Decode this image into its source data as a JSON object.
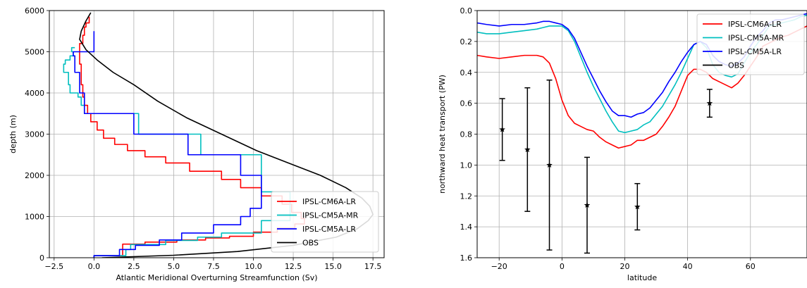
{
  "chart_data": [
    {
      "type": "line",
      "xlabel": "Atlantic Meridional Overturning Streamfunction (Sv)",
      "ylabel": "depth (m)",
      "xlim": [
        -2.8,
        18.2
      ],
      "ylim": [
        6000,
        0
      ],
      "y_inverted": true,
      "grid": true,
      "legend_position": "lower-right",
      "xticks": [
        -2.5,
        0.0,
        2.5,
        5.0,
        7.5,
        10.0,
        12.5,
        15.0,
        17.5
      ],
      "xtick_labels": [
        "−2.5",
        "0.0",
        "2.5",
        "5.0",
        "7.5",
        "10.0",
        "12.5",
        "15.0",
        "17.5"
      ],
      "yticks": [
        0,
        1000,
        2000,
        3000,
        4000,
        5000,
        6000
      ],
      "ytick_labels": [
        "0",
        "1000",
        "2000",
        "3000",
        "4000",
        "5000",
        "6000"
      ],
      "series": [
        {
          "name": "IPSL-CM6A-LR",
          "color": "#ff0000",
          "step": true,
          "x": [
            0,
            1.8,
            1.8,
            1.8,
            3.2,
            5.2,
            7.0,
            8.5,
            10.0,
            11.5,
            12.6,
            13.2,
            13.0,
            12.4,
            11.8,
            10.5,
            9.2,
            8.0,
            6.0,
            4.5,
            3.2,
            2.1,
            1.3,
            0.6,
            0.2,
            -0.2,
            -0.4,
            -0.6,
            -0.7,
            -0.8,
            -0.9,
            -0.7,
            -0.6,
            -0.5,
            -0.3
          ],
          "y": [
            0,
            50,
            150,
            250,
            330,
            380,
            430,
            480,
            520,
            620,
            720,
            820,
            950,
            1100,
            1300,
            1500,
            1700,
            1900,
            2100,
            2300,
            2450,
            2600,
            2750,
            2900,
            3100,
            3300,
            3500,
            3700,
            3900,
            4200,
            4700,
            5200,
            5400,
            5600,
            5700
          ],
          "bottom": 5850
        },
        {
          "name": "IPSL-CM5A-MR",
          "color": "#00bfbf",
          "step": true,
          "x": [
            0,
            2.0,
            2.3,
            4.5,
            6.5,
            8.0,
            10.5,
            11.2,
            12.3,
            12.3,
            10.5,
            10.5,
            6.7,
            2.8,
            0.0,
            -0.6,
            -0.8,
            -1.0,
            -1.5,
            -1.6,
            -1.9,
            -1.8,
            -1.5,
            -1.3,
            -1.4,
            -1.2
          ],
          "y": [
            0,
            50,
            200,
            320,
            420,
            500,
            600,
            900,
            900,
            1200,
            1600,
            2000,
            2500,
            3000,
            3500,
            3500,
            3700,
            3900,
            4000,
            4200,
            4500,
            4700,
            4800,
            4900,
            5000,
            5100
          ],
          "bottom": 5100
        },
        {
          "name": "IPSL-CM5A-LR",
          "color": "#0000ff",
          "step": true,
          "x": [
            0,
            1.6,
            2.6,
            4.1,
            5.5,
            7.5,
            9.2,
            9.8,
            10.5,
            10.5,
            9.8,
            9.2,
            5.9,
            2.5,
            0.0,
            -0.6,
            -0.9,
            -1.2,
            -1.3,
            -1.1,
            0.0
          ],
          "y": [
            0,
            50,
            200,
            300,
            430,
            600,
            800,
            1000,
            1200,
            1600,
            2000,
            2000,
            2500,
            3000,
            3500,
            3500,
            4000,
            4500,
            4900,
            5000,
            5000
          ],
          "bottom": 5500
        },
        {
          "name": "OBS",
          "color": "#000000",
          "step": false,
          "x": [
            0.5,
            5.0,
            9.0,
            12.5,
            15.2,
            16.5,
            17.2,
            17.5,
            17.3,
            16.8,
            15.8,
            14.2,
            12.2,
            10.2,
            8.0,
            5.8,
            4.0,
            2.5,
            1.2,
            0.2,
            -0.5,
            -0.9,
            -0.8,
            -0.5,
            -0.2
          ],
          "y": [
            0,
            60,
            150,
            300,
            500,
            700,
            900,
            1050,
            1250,
            1450,
            1700,
            2000,
            2300,
            2600,
            3000,
            3400,
            3800,
            4200,
            4500,
            4800,
            5050,
            5300,
            5500,
            5750,
            5950
          ]
        }
      ]
    },
    {
      "type": "line",
      "xlabel": "latitude",
      "ylabel": "northward heat transport (PW)",
      "xlim": [
        -27,
        78
      ],
      "ylim": [
        0.0,
        1.6
      ],
      "grid": true,
      "legend_position": "upper-right",
      "xticks": [
        -20,
        0,
        20,
        40,
        60
      ],
      "xtick_labels": [
        "−20",
        "0",
        "20",
        "40",
        "60"
      ],
      "yticks": [
        0.0,
        0.2,
        0.4,
        0.6,
        0.8,
        1.0,
        1.2,
        1.4,
        1.6
      ],
      "ytick_labels": [
        "0.0",
        "0.2",
        "0.4",
        "0.6",
        "0.8",
        "1.0",
        "1.2",
        "1.4",
        "1.6"
      ],
      "series": [
        {
          "name": "IPSL-CM6A-LR",
          "color": "#ff0000",
          "x": [
            -27,
            -24,
            -20,
            -16,
            -12,
            -8,
            -6,
            -4,
            -2,
            0,
            2,
            4,
            6,
            8,
            10,
            12,
            14,
            16,
            18,
            20,
            22,
            24,
            26,
            28,
            30,
            32,
            34,
            36,
            38,
            40,
            42,
            44,
            46,
            48,
            50,
            52,
            54,
            56,
            58,
            60,
            62,
            64,
            66,
            68,
            70,
            72,
            74,
            76,
            78
          ],
          "y": [
            0.29,
            0.3,
            0.31,
            0.3,
            0.29,
            0.29,
            0.3,
            0.34,
            0.44,
            0.58,
            0.68,
            0.73,
            0.75,
            0.77,
            0.78,
            0.82,
            0.85,
            0.87,
            0.89,
            0.88,
            0.87,
            0.84,
            0.84,
            0.82,
            0.8,
            0.75,
            0.69,
            0.62,
            0.52,
            0.42,
            0.38,
            0.38,
            0.4,
            0.44,
            0.46,
            0.48,
            0.5,
            0.47,
            0.42,
            0.36,
            0.3,
            0.23,
            0.21,
            0.19,
            0.17,
            0.16,
            0.14,
            0.12,
            0.1
          ]
        },
        {
          "name": "IPSL-CM5A-MR",
          "color": "#00bfbf",
          "x": [
            -27,
            -24,
            -20,
            -16,
            -12,
            -8,
            -6,
            -4,
            -2,
            0,
            2,
            4,
            6,
            8,
            10,
            12,
            14,
            16,
            18,
            20,
            22,
            24,
            26,
            28,
            30,
            32,
            34,
            36,
            38,
            40,
            42,
            44,
            46,
            48,
            50,
            52,
            54,
            56,
            58,
            60,
            62,
            64,
            66,
            68,
            70,
            72,
            74,
            76,
            78
          ],
          "y": [
            0.14,
            0.15,
            0.15,
            0.14,
            0.13,
            0.12,
            0.11,
            0.1,
            0.1,
            0.1,
            0.13,
            0.2,
            0.3,
            0.4,
            0.49,
            0.57,
            0.65,
            0.72,
            0.78,
            0.79,
            0.78,
            0.77,
            0.74,
            0.72,
            0.67,
            0.62,
            0.55,
            0.48,
            0.4,
            0.31,
            0.22,
            0.2,
            0.24,
            0.35,
            0.4,
            0.42,
            0.43,
            0.41,
            0.34,
            0.27,
            0.22,
            0.16,
            0.1,
            0.09,
            0.08,
            0.07,
            0.06,
            0.04,
            0.03
          ]
        },
        {
          "name": "IPSL-CM5A-LR",
          "color": "#0000ff",
          "x": [
            -27,
            -24,
            -20,
            -16,
            -12,
            -8,
            -6,
            -4,
            -2,
            0,
            2,
            4,
            6,
            8,
            10,
            12,
            14,
            16,
            18,
            20,
            22,
            24,
            26,
            28,
            30,
            32,
            34,
            36,
            38,
            40,
            42,
            44,
            46,
            48,
            50,
            52,
            54,
            56,
            58,
            60,
            62,
            64,
            66,
            68,
            70,
            72,
            74,
            76,
            78
          ],
          "y": [
            0.08,
            0.09,
            0.1,
            0.09,
            0.09,
            0.08,
            0.07,
            0.07,
            0.08,
            0.09,
            0.12,
            0.18,
            0.27,
            0.36,
            0.44,
            0.52,
            0.59,
            0.65,
            0.68,
            0.68,
            0.69,
            0.67,
            0.66,
            0.63,
            0.58,
            0.53,
            0.46,
            0.4,
            0.33,
            0.27,
            0.22,
            0.2,
            0.22,
            0.29,
            0.33,
            0.35,
            0.36,
            0.34,
            0.3,
            0.23,
            0.17,
            0.13,
            0.08,
            0.06,
            0.06,
            0.05,
            0.04,
            0.03,
            0.02
          ]
        },
        {
          "name": "OBS",
          "color": "#000000",
          "type": "errorbar",
          "x": [
            -19,
            -11,
            -4,
            8,
            24,
            47
          ],
          "y": [
            0.77,
            0.9,
            1.0,
            1.26,
            1.27,
            0.6
          ],
          "yerr_low": [
            0.57,
            0.5,
            0.45,
            0.95,
            1.12,
            0.51
          ],
          "yerr_high": [
            0.97,
            1.3,
            1.55,
            1.57,
            1.42,
            0.69
          ]
        }
      ]
    }
  ]
}
